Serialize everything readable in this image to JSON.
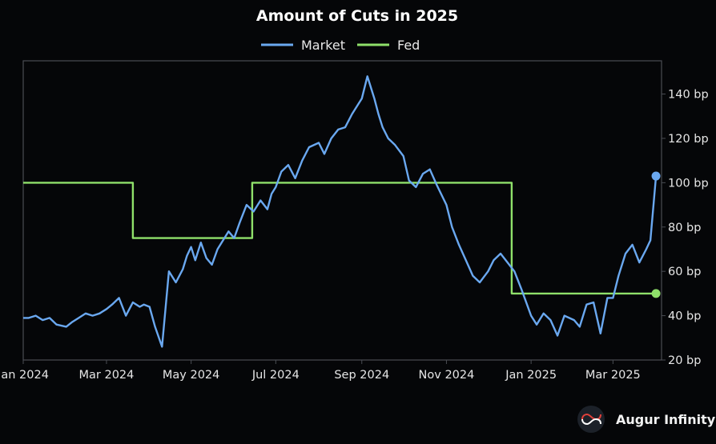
{
  "chart_data": {
    "type": "line",
    "title": "Amount of Cuts in 2025",
    "x_tick_labels": [
      "Jan 2024",
      "Mar 2024",
      "May 2024",
      "Jul 2024",
      "Sep 2024",
      "Nov 2024",
      "Jan 2025",
      "Mar 2025"
    ],
    "y_tick_labels": [
      "20 bp",
      "40 bp",
      "60 bp",
      "80 bp",
      "100 bp",
      "120 bp",
      "140 bp"
    ],
    "y_ticks": [
      20,
      40,
      60,
      80,
      100,
      120,
      140
    ],
    "ylim": [
      20,
      155
    ],
    "xlim": [
      "2024-01-01",
      "2025-04-05"
    ],
    "grid": false,
    "legend_position": "top-center",
    "y_axis_side": "right",
    "end_markers": true,
    "series": [
      {
        "name": "Market",
        "color": "#6aa8f0",
        "x": [
          "2024-01-01",
          "2024-01-05",
          "2024-01-10",
          "2024-01-15",
          "2024-01-20",
          "2024-01-25",
          "2024-02-01",
          "2024-02-05",
          "2024-02-10",
          "2024-02-15",
          "2024-02-20",
          "2024-02-25",
          "2024-03-01",
          "2024-03-05",
          "2024-03-10",
          "2024-03-15",
          "2024-03-20",
          "2024-03-25",
          "2024-03-28",
          "2024-04-01",
          "2024-04-05",
          "2024-04-10",
          "2024-04-15",
          "2024-04-20",
          "2024-04-25",
          "2024-04-28",
          "2024-05-01",
          "2024-05-04",
          "2024-05-08",
          "2024-05-12",
          "2024-05-16",
          "2024-05-20",
          "2024-05-24",
          "2024-05-28",
          "2024-06-01",
          "2024-06-05",
          "2024-06-10",
          "2024-06-15",
          "2024-06-20",
          "2024-06-25",
          "2024-06-28",
          "2024-07-01",
          "2024-07-05",
          "2024-07-10",
          "2024-07-15",
          "2024-07-20",
          "2024-07-25",
          "2024-08-01",
          "2024-08-05",
          "2024-08-10",
          "2024-08-15",
          "2024-08-20",
          "2024-08-25",
          "2024-09-01",
          "2024-09-05",
          "2024-09-10",
          "2024-09-13",
          "2024-09-16",
          "2024-09-20",
          "2024-09-25",
          "2024-10-01",
          "2024-10-05",
          "2024-10-10",
          "2024-10-15",
          "2024-10-20",
          "2024-10-25",
          "2024-11-01",
          "2024-11-05",
          "2024-11-10",
          "2024-11-15",
          "2024-11-20",
          "2024-11-25",
          "2024-12-01",
          "2024-12-05",
          "2024-12-10",
          "2024-12-15",
          "2024-12-20",
          "2024-12-25",
          "2025-01-01",
          "2025-01-05",
          "2025-01-10",
          "2025-01-15",
          "2025-01-20",
          "2025-01-25",
          "2025-02-01",
          "2025-02-05",
          "2025-02-10",
          "2025-02-15",
          "2025-02-20",
          "2025-02-25",
          "2025-03-01",
          "2025-03-05",
          "2025-03-10",
          "2025-03-15",
          "2025-03-20",
          "2025-03-25",
          "2025-03-28",
          "2025-04-01"
        ],
        "values": [
          39,
          39,
          40,
          38,
          39,
          36,
          35,
          37,
          39,
          41,
          40,
          41,
          43,
          45,
          48,
          40,
          46,
          44,
          45,
          44,
          35,
          26,
          60,
          55,
          61,
          67,
          71,
          65,
          73,
          66,
          63,
          70,
          74,
          78,
          75,
          82,
          90,
          87,
          92,
          88,
          95,
          98,
          105,
          108,
          102,
          110,
          116,
          118,
          113,
          120,
          124,
          125,
          131,
          138,
          148,
          138,
          131,
          125,
          120,
          117,
          112,
          101,
          98,
          104,
          106,
          99,
          90,
          80,
          72,
          65,
          58,
          55,
          60,
          65,
          68,
          64,
          60,
          52,
          40,
          36,
          41,
          38,
          31,
          40,
          38,
          35,
          45,
          46,
          32,
          48,
          48,
          58,
          68,
          72,
          64,
          70,
          74,
          103
        ]
      },
      {
        "name": "Fed",
        "color": "#8fe06a",
        "step": true,
        "x": [
          "2024-01-01",
          "2024-03-20",
          "2024-06-14",
          "2024-12-18",
          "2025-04-01"
        ],
        "values": [
          100,
          75,
          100,
          50,
          50
        ]
      }
    ]
  },
  "brand": {
    "name": "Augur Infinity",
    "icon": "infinity-logo-icon",
    "accent": "#e0403a"
  }
}
